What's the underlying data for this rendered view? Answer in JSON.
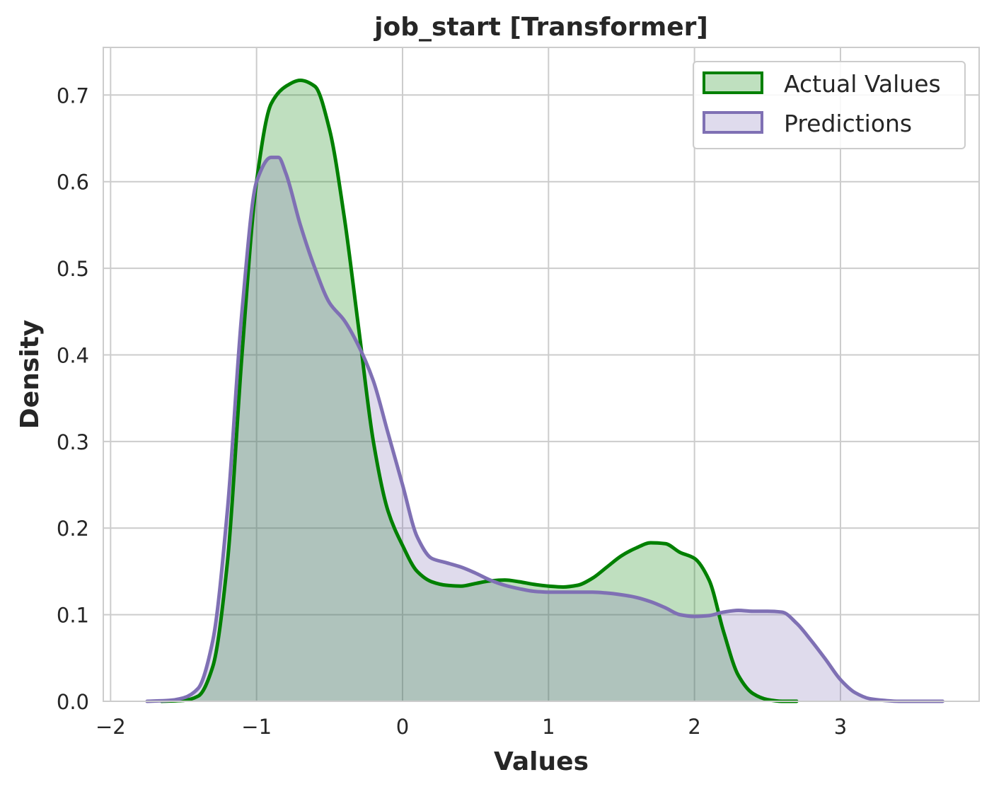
{
  "chart_data": {
    "type": "area",
    "title": "job_start [Transformer]",
    "xlabel": "Values",
    "ylabel": "Density",
    "xlim": [
      -2.05,
      3.95
    ],
    "ylim": [
      0.0,
      0.755
    ],
    "xticks": [
      -2,
      -1,
      0,
      1,
      2,
      3
    ],
    "xtick_labels": [
      "−2",
      "−1",
      "0",
      "1",
      "2",
      "3"
    ],
    "yticks": [
      0.0,
      0.1,
      0.2,
      0.3,
      0.4,
      0.5,
      0.6,
      0.7
    ],
    "ytick_labels": [
      "0.0",
      "0.1",
      "0.2",
      "0.3",
      "0.4",
      "0.5",
      "0.6",
      "0.7"
    ],
    "grid": true,
    "legend_position": "top-right",
    "series": [
      {
        "name": "Actual Values",
        "color": "#008000",
        "fill": "#bfe0bf",
        "x": [
          -1.65,
          -1.5,
          -1.4,
          -1.3,
          -1.2,
          -1.1,
          -1.0,
          -0.9,
          -0.8,
          -0.7,
          -0.6,
          -0.5,
          -0.4,
          -0.3,
          -0.2,
          -0.1,
          0.0,
          0.1,
          0.2,
          0.3,
          0.4,
          0.5,
          0.6,
          0.7,
          0.8,
          0.9,
          1.0,
          1.1,
          1.2,
          1.3,
          1.4,
          1.5,
          1.6,
          1.7,
          1.8,
          1.9,
          2.0,
          2.1,
          2.2,
          2.3,
          2.4,
          2.5,
          2.6,
          2.7
        ],
        "y": [
          0.0,
          0.001,
          0.006,
          0.04,
          0.16,
          0.4,
          0.6,
          0.69,
          0.71,
          0.717,
          0.71,
          0.66,
          0.56,
          0.43,
          0.3,
          0.22,
          0.18,
          0.15,
          0.138,
          0.134,
          0.133,
          0.136,
          0.139,
          0.14,
          0.138,
          0.135,
          0.133,
          0.132,
          0.134,
          0.142,
          0.155,
          0.168,
          0.177,
          0.183,
          0.182,
          0.172,
          0.165,
          0.14,
          0.08,
          0.03,
          0.009,
          0.002,
          0.0,
          0.0
        ]
      },
      {
        "name": "Predictions",
        "color": "#7f70b4",
        "fill": "#dfdbed",
        "x": [
          -1.75,
          -1.6,
          -1.5,
          -1.4,
          -1.3,
          -1.2,
          -1.1,
          -1.0,
          -0.9,
          -0.85,
          -0.8,
          -0.7,
          -0.6,
          -0.5,
          -0.4,
          -0.3,
          -0.2,
          -0.1,
          0.0,
          0.1,
          0.2,
          0.3,
          0.4,
          0.5,
          0.6,
          0.7,
          0.8,
          0.9,
          1.0,
          1.1,
          1.2,
          1.3,
          1.4,
          1.5,
          1.6,
          1.7,
          1.8,
          1.9,
          2.0,
          2.1,
          2.2,
          2.3,
          2.4,
          2.5,
          2.6,
          2.7,
          2.8,
          2.9,
          3.0,
          3.1,
          3.2,
          3.3,
          3.4,
          3.5,
          3.7
        ],
        "y": [
          0.0,
          0.001,
          0.004,
          0.015,
          0.07,
          0.22,
          0.45,
          0.6,
          0.628,
          0.628,
          0.61,
          0.55,
          0.5,
          0.46,
          0.44,
          0.41,
          0.37,
          0.31,
          0.25,
          0.19,
          0.165,
          0.16,
          0.155,
          0.148,
          0.14,
          0.134,
          0.13,
          0.127,
          0.126,
          0.126,
          0.126,
          0.126,
          0.125,
          0.123,
          0.12,
          0.115,
          0.108,
          0.1,
          0.098,
          0.099,
          0.103,
          0.105,
          0.104,
          0.104,
          0.103,
          0.09,
          0.07,
          0.048,
          0.025,
          0.01,
          0.003,
          0.001,
          0.0,
          0.0,
          0.0
        ]
      }
    ]
  }
}
